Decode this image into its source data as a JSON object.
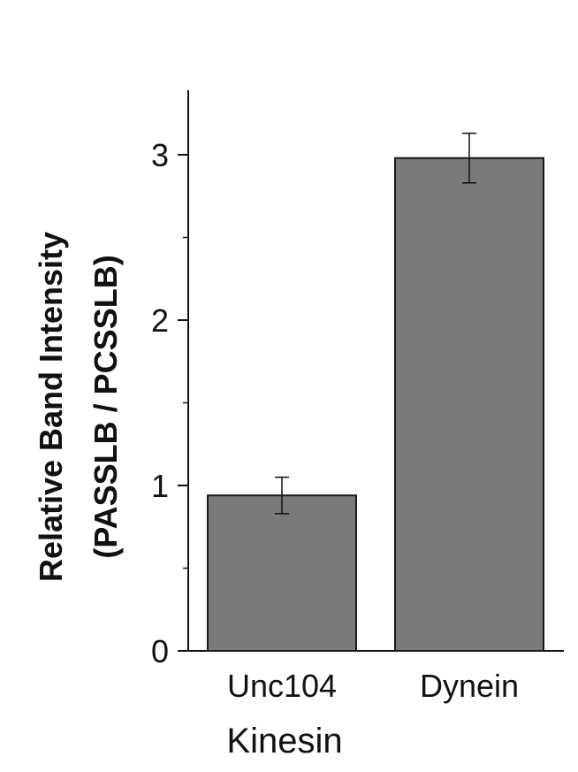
{
  "chart_data": {
    "type": "bar",
    "categories": [
      "Unc104",
      "Dynein"
    ],
    "values": [
      0.94,
      2.98
    ],
    "errors": [
      0.11,
      0.15
    ],
    "xlabel": "Kinesin",
    "ylabel_lines": [
      "Relative Band Intensity",
      "(PASSLB  /  PCSSLB)"
    ],
    "ylim": [
      0,
      3.4
    ],
    "yticks": [
      0,
      1,
      2,
      3
    ],
    "ytick_labels": [
      "0",
      "1",
      "2",
      "3"
    ],
    "minor_yticks": [
      0.5,
      1.5,
      2.5
    ],
    "grid": false,
    "colors": {
      "bar_fill": "#7a7a7a",
      "bar_stroke": "#1a1a1a",
      "axis": "#111111"
    }
  }
}
